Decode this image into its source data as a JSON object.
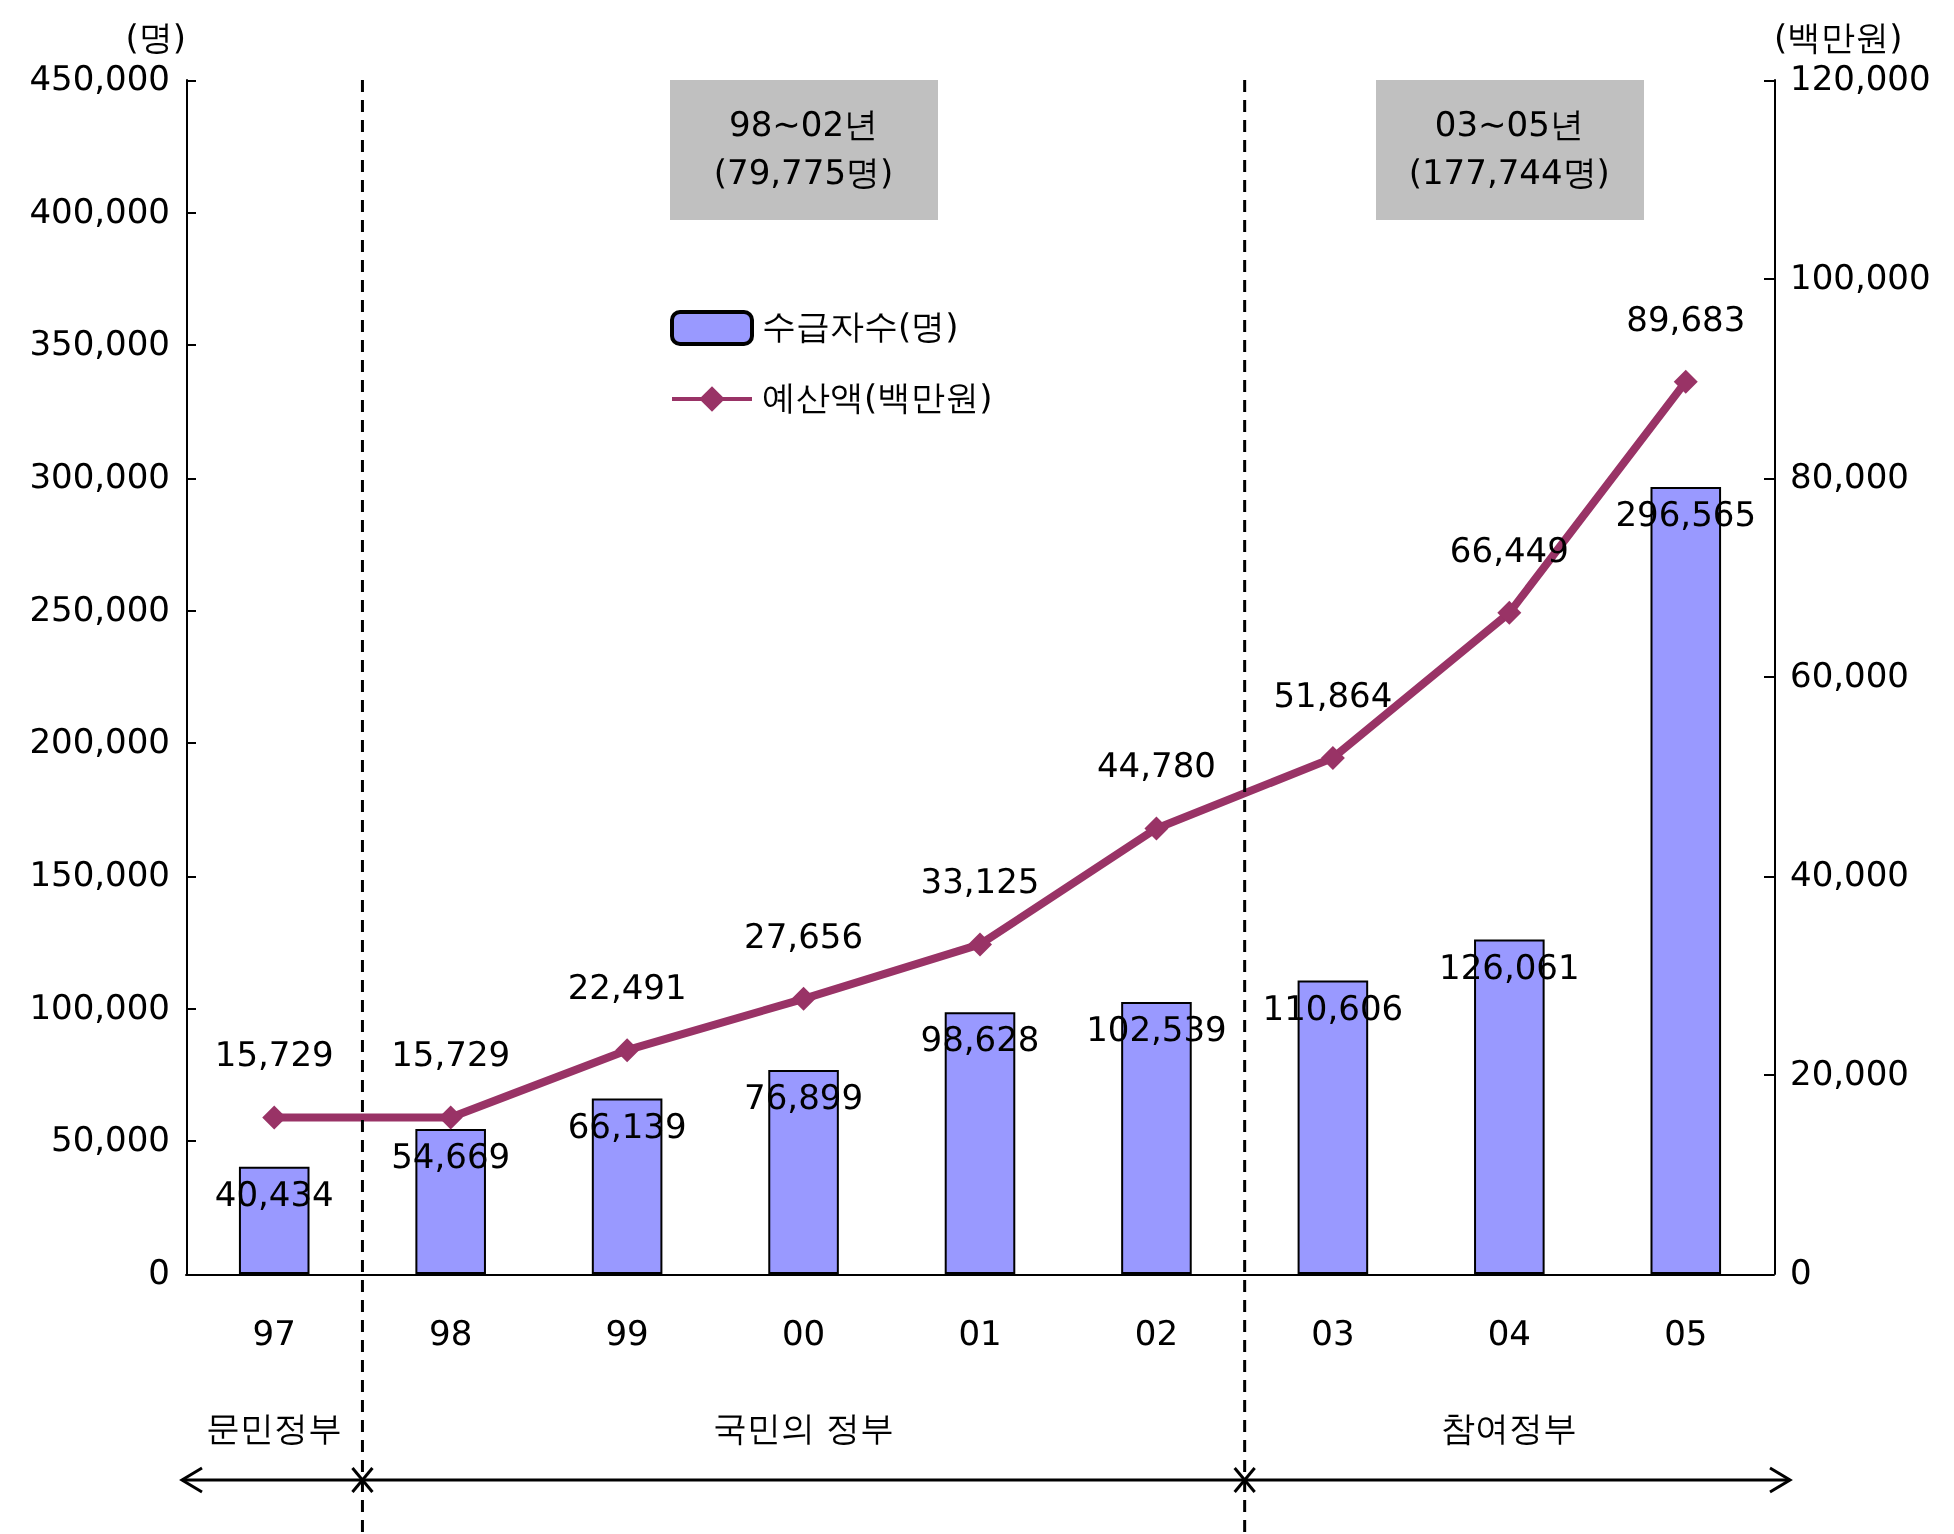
{
  "chart_data": {
    "type": "bar",
    "categories": [
      "97",
      "98",
      "99",
      "00",
      "01",
      "02",
      "03",
      "04",
      "05"
    ],
    "series": [
      {
        "name": "수급자수(명)",
        "color": "#9999ff",
        "values": [
          40434,
          54669,
          66139,
          76899,
          98628,
          102539,
          110606,
          126061,
          296565
        ],
        "value_labels": [
          "40,434",
          "54,669",
          "66,139",
          "76,899",
          "98,628",
          "102,539",
          "110,606",
          "126,061",
          "296,565"
        ]
      },
      {
        "name": "예산액(백만원)",
        "type": "line",
        "axis": "y2",
        "color": "#993366",
        "marker": "diamond",
        "values": [
          15729,
          15729,
          22491,
          27656,
          33125,
          44780,
          51864,
          66449,
          89683
        ],
        "value_labels": [
          "15,729",
          "15,729",
          "22,491",
          "27,656",
          "33,125",
          "44,780",
          "51,864",
          "66,449",
          "89,683"
        ]
      }
    ],
    "ylabel": "(명)",
    "y2label": "(백만원)",
    "ylim": [
      0,
      450000
    ],
    "yticks": [
      0,
      {
        "value": 50000,
        "label": "50,000"
      },
      {
        "value": 100000,
        "label": "100,000"
      },
      {
        "value": 150000,
        "label": "150,000"
      },
      {
        "value": 200000,
        "label": "200,000"
      },
      {
        "value": 250000,
        "label": "250,000"
      },
      {
        "value": 300000,
        "label": "300,000"
      },
      {
        "value": 350000,
        "label": "350,000"
      },
      {
        "value": 400000,
        "label": "400,000"
      },
      {
        "value": 450000,
        "label": "450,000"
      }
    ],
    "y2lim": [
      0,
      120000
    ],
    "y2ticks": [
      0,
      {
        "value": 20000,
        "label": "20,000"
      },
      {
        "value": 40000,
        "label": "40,000"
      },
      {
        "value": 60000,
        "label": "60,000"
      },
      {
        "value": 80000,
        "label": "80,000"
      },
      {
        "value": 100000,
        "label": "100,000"
      },
      {
        "value": 120000,
        "label": "120,000"
      }
    ],
    "legend": "top",
    "grid": false,
    "annotations": [
      "98~02년\n(79,775명)",
      "03~05년\n(177,744명)",
      "문민정부",
      "국민의 정부",
      "참여정부"
    ]
  }
}
